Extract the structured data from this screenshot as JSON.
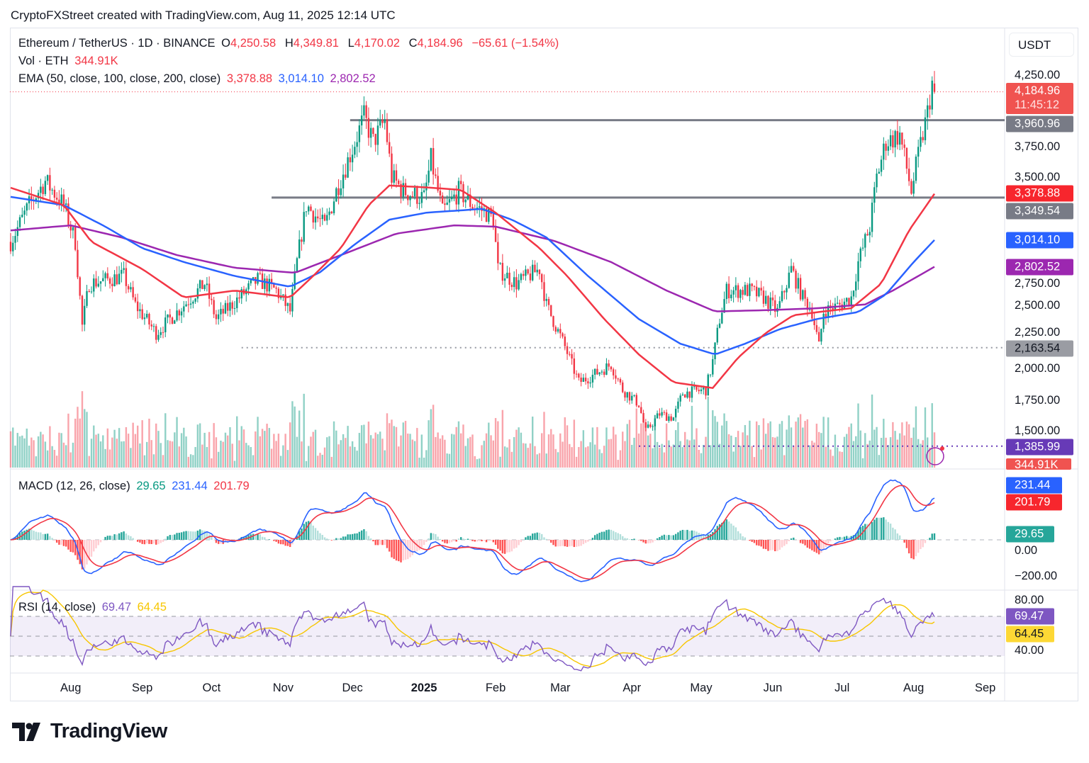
{
  "header": {
    "caption": "CryptoFXStreet created with TradingView.com, Aug 11, 2025 12:14 UTC"
  },
  "legend": {
    "symbol": "Ethereum / TetherUS · 1D · BINANCE",
    "o_label": "O",
    "open": "4,250.58",
    "h_label": "H",
    "high": "4,349.81",
    "l_label": "L",
    "low": "4,170.02",
    "c_label": "C",
    "close": "4,184.96",
    "change": "−65.61 (−1.54%)",
    "vol_label": "Vol · ETH",
    "vol": "344.91K",
    "ema_label": "EMA (50, close, 100, close, 200, close)",
    "ema50": "3,378.88",
    "ema100": "3,014.10",
    "ema200": "2,802.52",
    "macd_label": "MACD (12, 26, close)",
    "macd_hist": "29.65",
    "macd_line": "231.44",
    "macd_signal": "201.79",
    "rsi_label": "RSI (14, close)",
    "rsi": "69.47",
    "rsi_ma": "64.45"
  },
  "axis": {
    "currency": "USDT",
    "price_ticks": [
      "4,250.00",
      "3,750.00",
      "3,500.00",
      "2,750.00",
      "2,500.00",
      "2,250.00",
      "2,000.00",
      "1,750.00",
      "1,500.00"
    ],
    "price_tick_values": [
      4250,
      3750,
      3500,
      2750,
      2500,
      2250,
      2000,
      1750,
      1500
    ],
    "macd_ticks": [
      "0.00",
      "−200.00"
    ],
    "macd_tick_values": [
      0,
      -200
    ],
    "rsi_ticks": [
      "80.00",
      "40.00"
    ],
    "rsi_tick_values": [
      80,
      40
    ],
    "tags": {
      "price": "4,184.96",
      "countdown": "11:45:12",
      "res1": "3,960.96",
      "ema50": "3,378.88",
      "res2": "3,349.54",
      "ema100": "3,014.10",
      "ema200": "2,802.52",
      "sup1": "2,163.54",
      "sup2": "1,385.99",
      "vol": "344.91K",
      "macd": "231.44",
      "signal": "201.79",
      "hist": "29.65",
      "rsi": "69.47",
      "rsi_ma": "64.45"
    },
    "x_labels": [
      "Aug",
      "Sep",
      "Oct",
      "Nov",
      "Dec",
      "2025",
      "Feb",
      "Mar",
      "Apr",
      "May",
      "Jun",
      "Jul",
      "Aug",
      "Sep"
    ],
    "x_label_days": [
      26,
      57,
      87,
      118,
      148,
      179,
      210,
      238,
      269,
      299,
      330,
      360,
      391,
      422
    ]
  },
  "colors": {
    "up": "#089981",
    "down": "#f23645",
    "ema50": "#f23645",
    "ema100": "#2962ff",
    "ema200": "#9c27b0",
    "macd": "#2962ff",
    "signal": "#f23645",
    "rsi": "#7e57c2",
    "rsi_ma": "#f7c600",
    "level": "#787b86"
  },
  "logo": {
    "text": "TradingView"
  },
  "chart_data": {
    "type": "candlestick",
    "title": "Ethereum / TetherUS · 1D · BINANCE",
    "x_unit": "days since 2024-07-06",
    "ylim": [
      1200,
      4450
    ],
    "last_candle": {
      "open": 4250.58,
      "high": 4349.81,
      "low": 4170.02,
      "close": 4184.96
    },
    "close_path": [
      [
        0,
        3000
      ],
      [
        8,
        3290
      ],
      [
        15,
        3480
      ],
      [
        23,
        3290
      ],
      [
        28,
        3000
      ],
      [
        31,
        2335
      ],
      [
        34,
        2670
      ],
      [
        49,
        2730
      ],
      [
        54,
        2500
      ],
      [
        63,
        2280
      ],
      [
        75,
        2500
      ],
      [
        84,
        2670
      ],
      [
        89,
        2390
      ],
      [
        99,
        2560
      ],
      [
        107,
        2700
      ],
      [
        115,
        2615
      ],
      [
        121,
        2450
      ],
      [
        124,
        2840
      ],
      [
        128,
        3290
      ],
      [
        136,
        3120
      ],
      [
        142,
        3455
      ],
      [
        148,
        3735
      ],
      [
        153,
        3985
      ],
      [
        157,
        3790
      ],
      [
        162,
        3960
      ],
      [
        165,
        3510
      ],
      [
        170,
        3400
      ],
      [
        179,
        3345
      ],
      [
        182,
        3650
      ],
      [
        187,
        3230
      ],
      [
        194,
        3400
      ],
      [
        200,
        3290
      ],
      [
        206,
        3230
      ],
      [
        209,
        3175
      ],
      [
        211,
        2785
      ],
      [
        219,
        2670
      ],
      [
        229,
        2785
      ],
      [
        232,
        2500
      ],
      [
        240,
        2170
      ],
      [
        246,
        1890
      ],
      [
        252,
        1945
      ],
      [
        260,
        2030
      ],
      [
        265,
        1830
      ],
      [
        272,
        1720
      ],
      [
        275,
        1500
      ],
      [
        281,
        1640
      ],
      [
        287,
        1610
      ],
      [
        291,
        1805
      ],
      [
        301,
        1830
      ],
      [
        304,
        2055
      ],
      [
        307,
        2390
      ],
      [
        310,
        2615
      ],
      [
        320,
        2615
      ],
      [
        326,
        2560
      ],
      [
        332,
        2450
      ],
      [
        338,
        2785
      ],
      [
        343,
        2560
      ],
      [
        347,
        2450
      ],
      [
        350,
        2170
      ],
      [
        352,
        2450
      ],
      [
        359,
        2500
      ],
      [
        364,
        2560
      ],
      [
        367,
        2840
      ],
      [
        372,
        3120
      ],
      [
        375,
        3510
      ],
      [
        379,
        3790
      ],
      [
        385,
        3845
      ],
      [
        390,
        3400
      ],
      [
        393,
        3680
      ],
      [
        397,
        4020
      ],
      [
        399,
        4250
      ],
      [
        400,
        4184.96
      ]
    ],
    "ema50": [
      [
        0,
        3427
      ],
      [
        23,
        3290
      ],
      [
        35,
        3000
      ],
      [
        57,
        2785
      ],
      [
        75,
        2560
      ],
      [
        97,
        2615
      ],
      [
        121,
        2560
      ],
      [
        131,
        2730
      ],
      [
        143,
        2950
      ],
      [
        155,
        3290
      ],
      [
        164,
        3445
      ],
      [
        180,
        3430
      ],
      [
        195,
        3410
      ],
      [
        210,
        3230
      ],
      [
        229,
        2950
      ],
      [
        241,
        2730
      ],
      [
        257,
        2390
      ],
      [
        272,
        2110
      ],
      [
        287,
        1890
      ],
      [
        304,
        1845
      ],
      [
        315,
        2085
      ],
      [
        327,
        2280
      ],
      [
        339,
        2420
      ],
      [
        352,
        2450
      ],
      [
        364,
        2475
      ],
      [
        377,
        2670
      ],
      [
        389,
        3090
      ],
      [
        400,
        3378.88
      ]
    ],
    "ema100": [
      [
        0,
        3355
      ],
      [
        23,
        3290
      ],
      [
        41,
        3120
      ],
      [
        57,
        2950
      ],
      [
        75,
        2840
      ],
      [
        97,
        2730
      ],
      [
        121,
        2645
      ],
      [
        134,
        2760
      ],
      [
        149,
        2980
      ],
      [
        164,
        3175
      ],
      [
        180,
        3230
      ],
      [
        204,
        3260
      ],
      [
        217,
        3175
      ],
      [
        232,
        3035
      ],
      [
        250,
        2730
      ],
      [
        272,
        2390
      ],
      [
        290,
        2195
      ],
      [
        305,
        2110
      ],
      [
        318,
        2195
      ],
      [
        333,
        2310
      ],
      [
        349,
        2390
      ],
      [
        367,
        2445
      ],
      [
        379,
        2585
      ],
      [
        391,
        2840
      ],
      [
        400,
        3014.1
      ]
    ],
    "ema200": [
      [
        0,
        3090
      ],
      [
        26,
        3130
      ],
      [
        48,
        3035
      ],
      [
        72,
        2895
      ],
      [
        97,
        2795
      ],
      [
        123,
        2755
      ],
      [
        143,
        2895
      ],
      [
        167,
        3065
      ],
      [
        192,
        3130
      ],
      [
        210,
        3120
      ],
      [
        235,
        3010
      ],
      [
        260,
        2840
      ],
      [
        284,
        2615
      ],
      [
        305,
        2450
      ],
      [
        327,
        2460
      ],
      [
        349,
        2475
      ],
      [
        370,
        2505
      ],
      [
        382,
        2615
      ],
      [
        400,
        2802.52
      ]
    ],
    "levels": [
      {
        "name": "resistance-3960",
        "value": 3960.96,
        "from_day": 147,
        "style": "solid"
      },
      {
        "name": "resistance-3349",
        "value": 3349.54,
        "from_day": 113,
        "style": "solid"
      },
      {
        "name": "support-2163",
        "value": 2163.54,
        "from_day": 100,
        "style": "dotted"
      },
      {
        "name": "support-1385",
        "value": 1385.99,
        "from_day": 272,
        "style": "dotted"
      }
    ],
    "macd": {
      "ylim": [
        -300,
        330
      ],
      "last": {
        "macd": 231.44,
        "signal": 201.79,
        "hist": 29.65
      }
    },
    "rsi": {
      "ylim": [
        18,
        100
      ],
      "bands": [
        70,
        50,
        30
      ],
      "last": {
        "rsi": 69.47,
        "ma": 64.45
      }
    }
  }
}
